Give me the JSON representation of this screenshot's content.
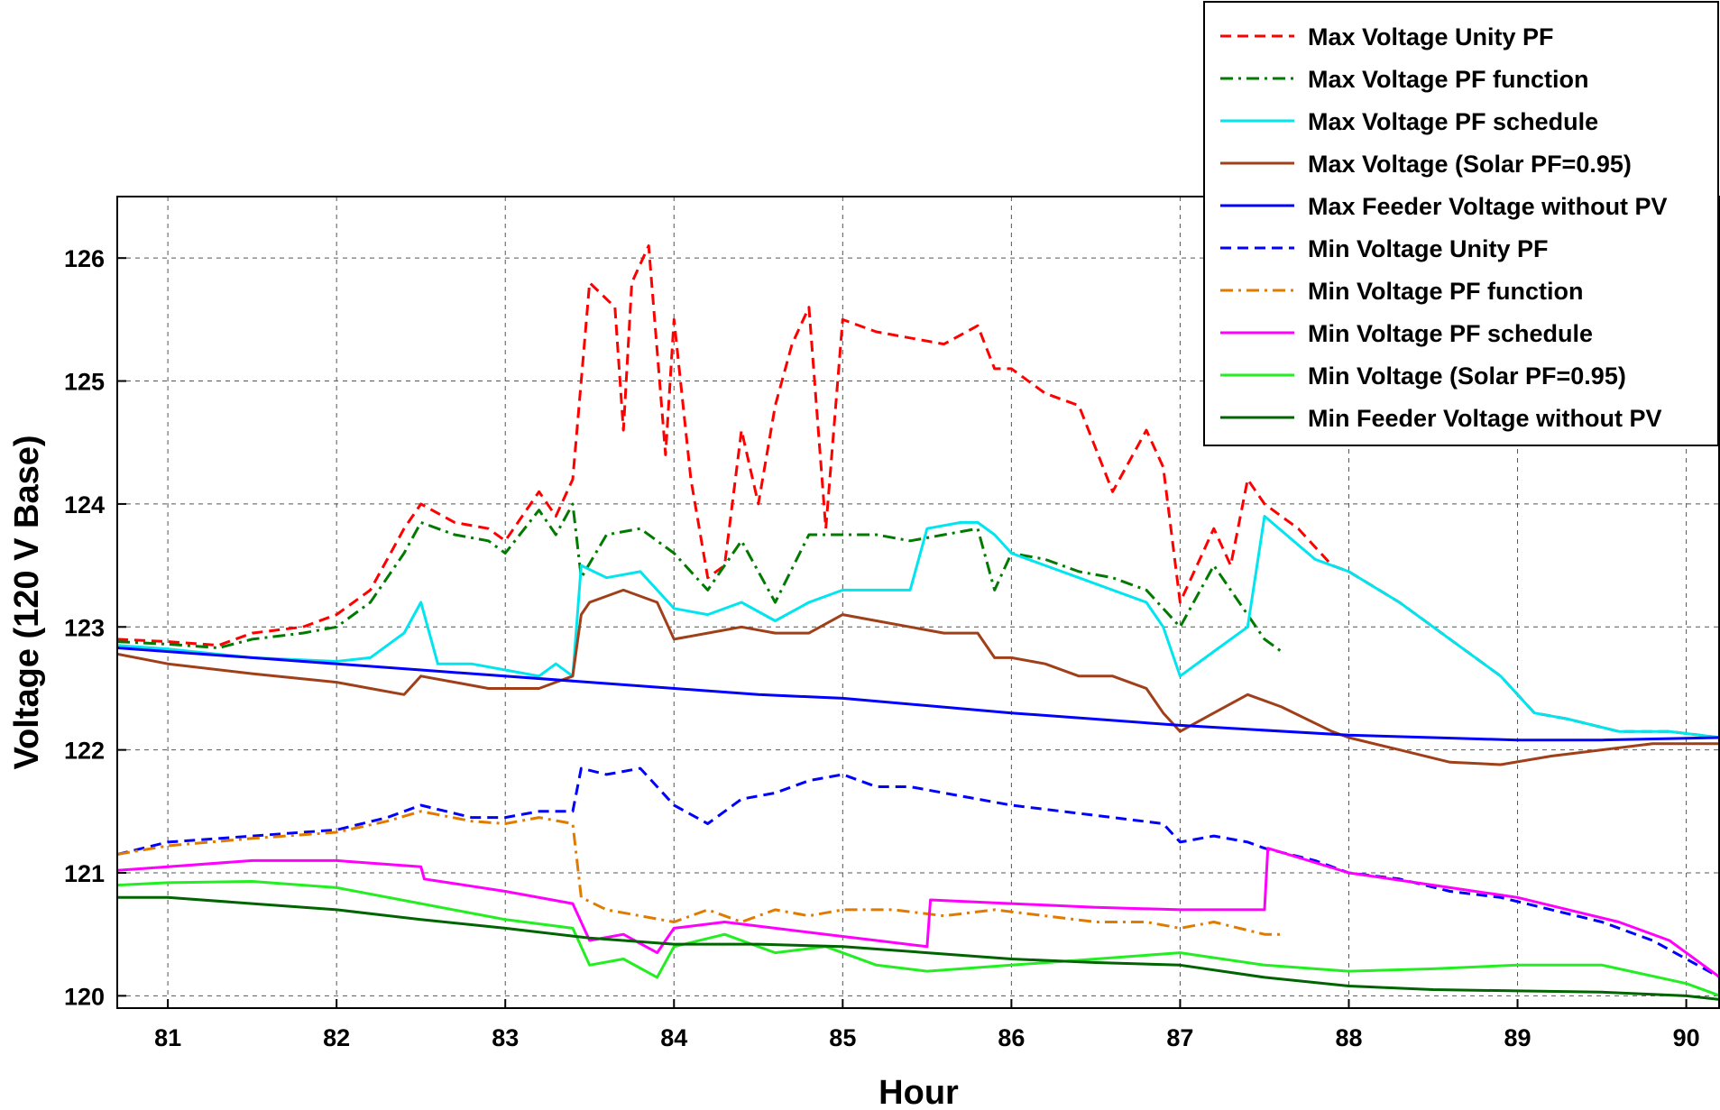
{
  "chart_data": {
    "type": "line",
    "title": "",
    "xlabel": "Hour",
    "ylabel": "Voltage (120 V Base)",
    "xlim": [
      80.7,
      90.2
    ],
    "ylim": [
      119.9,
      126.5
    ],
    "xticks": [
      81,
      82,
      83,
      84,
      85,
      86,
      87,
      88,
      89,
      90
    ],
    "yticks": [
      120,
      121,
      122,
      123,
      124,
      125,
      126
    ],
    "grid": true,
    "legend_position": "top-right",
    "series": [
      {
        "name": "Max Voltage Unity PF",
        "color": "#ff0000",
        "dash": "dashed",
        "x": [
          80.7,
          81.0,
          81.3,
          81.5,
          81.8,
          82.0,
          82.2,
          82.4,
          82.5,
          82.7,
          82.9,
          83.0,
          83.2,
          83.3,
          83.4,
          83.45,
          83.5,
          83.65,
          83.7,
          83.75,
          83.85,
          83.95,
          84.0,
          84.1,
          84.2,
          84.3,
          84.4,
          84.5,
          84.6,
          84.7,
          84.8,
          84.9,
          85.0,
          85.2,
          85.4,
          85.6,
          85.8,
          85.9,
          86.0,
          86.2,
          86.4,
          86.6,
          86.8,
          86.9,
          87.0,
          87.2,
          87.3,
          87.4,
          87.5,
          87.7,
          87.9,
          88.0,
          88.3,
          88.6,
          88.9,
          89.1,
          89.3,
          89.6,
          89.9,
          90.2
        ],
        "y": [
          122.9,
          122.88,
          122.85,
          122.95,
          123.0,
          123.1,
          123.3,
          123.8,
          124.0,
          123.85,
          123.8,
          123.7,
          124.1,
          123.9,
          124.2,
          125.0,
          125.8,
          125.6,
          124.6,
          125.8,
          126.1,
          124.4,
          125.5,
          124.2,
          123.4,
          123.5,
          124.6,
          124.0,
          124.8,
          125.3,
          125.6,
          123.8,
          125.5,
          125.4,
          125.35,
          125.3,
          125.45,
          125.1,
          125.1,
          124.9,
          124.8,
          124.1,
          124.6,
          124.3,
          123.2,
          123.8,
          123.5,
          124.2,
          124.0,
          123.8,
          123.5,
          123.45,
          123.2,
          122.9,
          122.6,
          122.3,
          122.25,
          122.15,
          122.15,
          122.1
        ]
      },
      {
        "name": "Max Voltage PF function",
        "color": "#007a00",
        "dash": "dashdot",
        "x": [
          80.7,
          81.0,
          81.3,
          81.5,
          81.8,
          82.0,
          82.2,
          82.4,
          82.5,
          82.7,
          82.9,
          83.0,
          83.2,
          83.3,
          83.4,
          83.45,
          83.6,
          83.8,
          84.0,
          84.2,
          84.4,
          84.6,
          84.8,
          85.0,
          85.2,
          85.4,
          85.6,
          85.8,
          85.9,
          86.0,
          86.2,
          86.4,
          86.6,
          86.8,
          87.0,
          87.2,
          87.3,
          87.5,
          87.6
        ],
        "y": [
          122.88,
          122.86,
          122.83,
          122.9,
          122.95,
          123.0,
          123.2,
          123.6,
          123.85,
          123.75,
          123.7,
          123.6,
          123.95,
          123.75,
          124.0,
          123.4,
          123.75,
          123.8,
          123.6,
          123.3,
          123.7,
          123.2,
          123.75,
          123.75,
          123.75,
          123.7,
          123.75,
          123.8,
          123.3,
          123.6,
          123.55,
          123.45,
          123.4,
          123.3,
          123.0,
          123.5,
          123.3,
          122.9,
          122.8
        ]
      },
      {
        "name": "Max Voltage PF schedule",
        "color": "#00e5ee",
        "dash": "solid",
        "x": [
          80.7,
          81.0,
          81.5,
          82.0,
          82.2,
          82.4,
          82.5,
          82.6,
          82.8,
          83.0,
          83.2,
          83.3,
          83.4,
          83.45,
          83.6,
          83.8,
          84.0,
          84.2,
          84.4,
          84.6,
          84.8,
          85.0,
          85.2,
          85.4,
          85.5,
          85.7,
          85.8,
          85.9,
          86.0,
          86.2,
          86.4,
          86.6,
          86.8,
          86.9,
          87.0,
          87.2,
          87.4,
          87.5,
          87.8,
          88.0,
          88.3,
          88.6,
          88.9,
          89.1,
          89.3,
          89.6,
          89.9,
          90.2
        ],
        "y": [
          122.85,
          122.82,
          122.75,
          122.72,
          122.75,
          122.95,
          123.2,
          122.7,
          122.7,
          122.65,
          122.6,
          122.7,
          122.6,
          123.5,
          123.4,
          123.45,
          123.15,
          123.1,
          123.2,
          123.05,
          123.2,
          123.3,
          123.3,
          123.3,
          123.8,
          123.85,
          123.85,
          123.75,
          123.6,
          123.5,
          123.4,
          123.3,
          123.2,
          123.0,
          122.6,
          122.8,
          123.0,
          123.9,
          123.55,
          123.45,
          123.2,
          122.9,
          122.6,
          122.3,
          122.25,
          122.15,
          122.15,
          122.1
        ]
      },
      {
        "name": "Max Voltage (Solar PF=0.95)",
        "color": "#a0401a",
        "dash": "solid",
        "x": [
          80.7,
          81.0,
          81.5,
          82.0,
          82.2,
          82.4,
          82.5,
          82.7,
          82.9,
          83.2,
          83.3,
          83.4,
          83.45,
          83.5,
          83.7,
          83.9,
          84.0,
          84.2,
          84.4,
          84.6,
          84.8,
          85.0,
          85.2,
          85.4,
          85.6,
          85.8,
          85.9,
          86.0,
          86.2,
          86.4,
          86.6,
          86.8,
          86.9,
          87.0,
          87.2,
          87.4,
          87.6,
          87.9,
          88.0,
          88.3,
          88.6,
          88.9,
          89.2,
          89.5,
          89.8,
          90.2
        ],
        "y": [
          122.78,
          122.7,
          122.62,
          122.55,
          122.5,
          122.45,
          122.6,
          122.55,
          122.5,
          122.5,
          122.55,
          122.6,
          123.1,
          123.2,
          123.3,
          123.2,
          122.9,
          122.95,
          123.0,
          122.95,
          122.95,
          123.1,
          123.05,
          123.0,
          122.95,
          122.95,
          122.75,
          122.75,
          122.7,
          122.6,
          122.6,
          122.5,
          122.3,
          122.15,
          122.3,
          122.45,
          122.35,
          122.15,
          122.1,
          122.0,
          121.9,
          121.88,
          121.95,
          122.0,
          122.05,
          122.05
        ]
      },
      {
        "name": "Max Feeder Voltage without PV",
        "color": "#0000ff",
        "dash": "solid",
        "x": [
          80.7,
          81.5,
          82.5,
          83.5,
          84.5,
          85.0,
          86.0,
          87.0,
          88.0,
          88.5,
          89.0,
          89.5,
          90.2
        ],
        "y": [
          122.83,
          122.75,
          122.65,
          122.55,
          122.45,
          122.42,
          122.3,
          122.2,
          122.12,
          122.1,
          122.08,
          122.08,
          122.1
        ]
      },
      {
        "name": "Min Voltage Unity PF",
        "color": "#0000ff",
        "dash": "dashed",
        "x": [
          80.7,
          81.0,
          81.5,
          82.0,
          82.3,
          82.5,
          82.8,
          83.0,
          83.2,
          83.4,
          83.45,
          83.6,
          83.8,
          83.9,
          84.0,
          84.2,
          84.4,
          84.6,
          84.8,
          85.0,
          85.2,
          85.4,
          85.6,
          85.8,
          86.0,
          86.3,
          86.6,
          86.9,
          87.0,
          87.2,
          87.4,
          87.5,
          87.8,
          88.0,
          88.3,
          88.6,
          88.9,
          89.2,
          89.5,
          89.8,
          90.0,
          90.2
        ],
        "y": [
          121.15,
          121.25,
          121.3,
          121.35,
          121.45,
          121.55,
          121.45,
          121.45,
          121.5,
          121.5,
          121.85,
          121.8,
          121.85,
          121.7,
          121.55,
          121.4,
          121.6,
          121.65,
          121.75,
          121.8,
          121.7,
          121.7,
          121.65,
          121.6,
          121.55,
          121.5,
          121.45,
          121.4,
          121.25,
          121.3,
          121.25,
          121.2,
          121.1,
          121.0,
          120.95,
          120.85,
          120.8,
          120.7,
          120.6,
          120.45,
          120.3,
          120.15
        ]
      },
      {
        "name": "Min Voltage PF function",
        "color": "#e07b00",
        "dash": "dashdot",
        "x": [
          80.7,
          81.0,
          81.5,
          82.0,
          82.3,
          82.5,
          82.8,
          83.0,
          83.2,
          83.4,
          83.45,
          83.6,
          83.8,
          84.0,
          84.2,
          84.4,
          84.6,
          84.8,
          85.0,
          85.3,
          85.6,
          85.9,
          86.2,
          86.5,
          86.8,
          87.0,
          87.2,
          87.5,
          87.6
        ],
        "y": [
          121.15,
          121.22,
          121.28,
          121.33,
          121.42,
          121.5,
          121.42,
          121.4,
          121.45,
          121.4,
          120.8,
          120.7,
          120.65,
          120.6,
          120.7,
          120.6,
          120.7,
          120.65,
          120.7,
          120.7,
          120.65,
          120.7,
          120.65,
          120.6,
          120.6,
          120.55,
          120.6,
          120.5,
          120.5
        ]
      },
      {
        "name": "Min Voltage PF schedule",
        "color": "#ff00ff",
        "dash": "solid",
        "x": [
          80.7,
          81.0,
          81.5,
          82.0,
          82.5,
          82.52,
          83.0,
          83.4,
          83.5,
          83.7,
          83.9,
          84.0,
          84.3,
          84.6,
          84.9,
          85.2,
          85.5,
          85.52,
          86.0,
          86.5,
          87.0,
          87.3,
          87.5,
          87.52,
          88.0,
          88.5,
          89.0,
          89.3,
          89.6,
          89.9,
          90.2
        ],
        "y": [
          121.02,
          121.05,
          121.1,
          121.1,
          121.05,
          120.95,
          120.85,
          120.75,
          120.45,
          120.5,
          120.35,
          120.55,
          120.6,
          120.55,
          120.5,
          120.45,
          120.4,
          120.78,
          120.75,
          120.72,
          120.7,
          120.7,
          120.7,
          121.2,
          121.0,
          120.9,
          120.8,
          120.7,
          120.6,
          120.45,
          120.15
        ]
      },
      {
        "name": "Min Voltage (Solar PF=0.95)",
        "color": "#22ee22",
        "dash": "solid",
        "x": [
          80.7,
          81.0,
          81.5,
          82.0,
          82.5,
          83.0,
          83.4,
          83.5,
          83.7,
          83.9,
          84.0,
          84.3,
          84.6,
          84.9,
          85.2,
          85.5,
          86.0,
          86.5,
          87.0,
          87.5,
          88.0,
          88.5,
          89.0,
          89.5,
          90.0,
          90.2
        ],
        "y": [
          120.9,
          120.92,
          120.93,
          120.88,
          120.75,
          120.62,
          120.55,
          120.25,
          120.3,
          120.15,
          120.4,
          120.5,
          120.35,
          120.4,
          120.25,
          120.2,
          120.25,
          120.3,
          120.35,
          120.25,
          120.2,
          120.22,
          120.25,
          120.25,
          120.1,
          120.0
        ]
      },
      {
        "name": "Min Feeder Voltage without PV",
        "color": "#006400",
        "dash": "solid",
        "x": [
          80.7,
          81.0,
          81.5,
          82.0,
          82.5,
          83.0,
          83.5,
          84.0,
          84.5,
          85.0,
          85.5,
          86.0,
          86.5,
          87.0,
          87.5,
          88.0,
          88.5,
          89.0,
          89.5,
          90.0,
          90.2
        ],
        "y": [
          120.8,
          120.8,
          120.75,
          120.7,
          120.62,
          120.55,
          120.47,
          120.42,
          120.42,
          120.4,
          120.35,
          120.3,
          120.27,
          120.25,
          120.15,
          120.08,
          120.05,
          120.04,
          120.03,
          120.0,
          119.97
        ]
      }
    ]
  }
}
